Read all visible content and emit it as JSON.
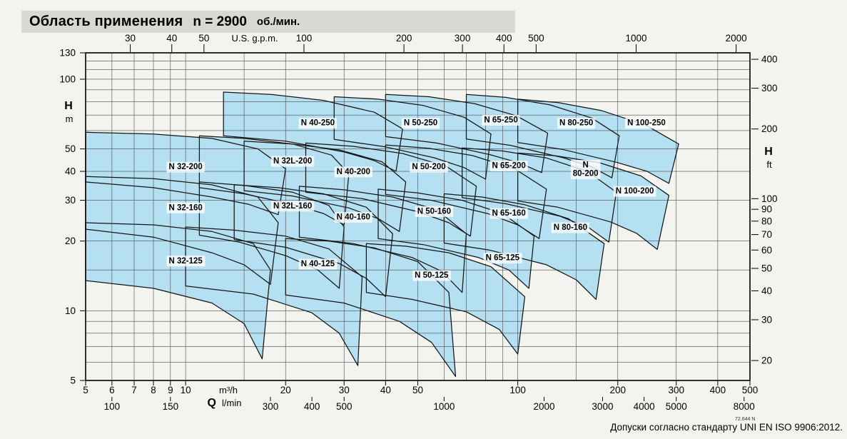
{
  "title_bar": {
    "main": "Область применения",
    "n_label": "n = 2900",
    "n_unit": "об./мин."
  },
  "footer": {
    "tolerance_note": "Допуски согласно стандарту UNI EN ISO 9906:2012.",
    "doc_code": "72.644 N"
  },
  "colors": {
    "region_fill": "#b5e0f1",
    "region_stroke": "#151515",
    "grid_line": "#4a4a4a",
    "plot_border": "#000000",
    "title_bar_bg": "#d8d8d5",
    "page_bg": "#f3f3ef",
    "label_bg": "rgba(255,255,255,0.78)"
  },
  "chart_data": {
    "type": "area",
    "title": "Область применения n = 2900 об./мин.",
    "x_axis": {
      "name": "Q",
      "scale": "log",
      "units": [
        "m³/h",
        "l/min",
        "U.S. g.p.m."
      ],
      "range_m3h": [
        5,
        500
      ],
      "ticks_m3h": [
        5,
        6,
        7,
        8,
        9,
        10,
        20,
        30,
        40,
        50,
        100,
        200,
        300,
        400,
        500
      ],
      "ticks_lmin": [
        100,
        150,
        300,
        400,
        500,
        1000,
        2000,
        3000,
        4000,
        5000,
        8000
      ],
      "ticks_gpm": [
        30,
        40,
        50,
        100,
        200,
        300,
        400,
        500,
        1000,
        2000
      ]
    },
    "y_axis": {
      "name": "H",
      "scale": "log",
      "units": [
        "m",
        "ft"
      ],
      "range_m": [
        5,
        130
      ],
      "ticks_m": [
        5,
        10,
        20,
        30,
        40,
        50,
        100,
        130
      ],
      "ticks_ft": [
        20,
        30,
        40,
        50,
        60,
        70,
        80,
        90,
        100,
        200,
        300,
        400
      ]
    },
    "grid": {
      "x_m3h": [
        5,
        6,
        7,
        8,
        9,
        10,
        15,
        20,
        30,
        40,
        50,
        60,
        70,
        80,
        90,
        100,
        150,
        200,
        300,
        400,
        500
      ],
      "y_m": [
        5,
        6,
        7,
        8,
        9,
        10,
        15,
        20,
        30,
        40,
        50,
        60,
        70,
        80,
        90,
        100,
        110,
        120,
        130
      ]
    },
    "regions": [
      {
        "name": "N 32-125",
        "label_lines": [
          "N 32-125"
        ],
        "label_pos": [
          10,
          16.5
        ],
        "points": [
          [
            5,
            24
          ],
          [
            8,
            23.5
          ],
          [
            12,
            22
          ],
          [
            16,
            19.5
          ],
          [
            18,
            15
          ],
          [
            17,
            6.2
          ],
          [
            15,
            8.8
          ],
          [
            12,
            10.8
          ],
          [
            8,
            12.5
          ],
          [
            5,
            13.5
          ]
        ]
      },
      {
        "name": "N 32-160",
        "label_lines": [
          "N 32-160"
        ],
        "label_pos": [
          10,
          28
        ],
        "points": [
          [
            5,
            38
          ],
          [
            8,
            37.2
          ],
          [
            12,
            35
          ],
          [
            16.5,
            31
          ],
          [
            19,
            24
          ],
          [
            18,
            13
          ],
          [
            15,
            15.8
          ],
          [
            12,
            17.8
          ],
          [
            8,
            20.8
          ],
          [
            5,
            22.5
          ]
        ]
      },
      {
        "name": "N 32-200",
        "label_lines": [
          "N 32-200"
        ],
        "label_pos": [
          10,
          42
        ],
        "points": [
          [
            5,
            59
          ],
          [
            8,
            58
          ],
          [
            12,
            55.5
          ],
          [
            16.5,
            50
          ],
          [
            20,
            41
          ],
          [
            19,
            26
          ],
          [
            15.5,
            28.8
          ],
          [
            12,
            31
          ],
          [
            8,
            34
          ],
          [
            5,
            36
          ]
        ]
      },
      {
        "name": "N 32L-160",
        "label_lines": [
          "N 32L-160"
        ],
        "label_pos": [
          21,
          28.5
        ],
        "points": [
          [
            11,
            36
          ],
          [
            15,
            34.8
          ],
          [
            21,
            32.5
          ],
          [
            27,
            28.5
          ],
          [
            30,
            23
          ],
          [
            29,
            12.5
          ],
          [
            25,
            15
          ],
          [
            20,
            17.3
          ],
          [
            14.5,
            19.8
          ],
          [
            11,
            21.2
          ]
        ]
      },
      {
        "name": "N 32L-200",
        "label_lines": [
          "N 32L-200"
        ],
        "label_pos": [
          21,
          44.5
        ],
        "points": [
          [
            11,
            57
          ],
          [
            15,
            55.5
          ],
          [
            21,
            52.5
          ],
          [
            27.5,
            47
          ],
          [
            31,
            39
          ],
          [
            30,
            23.5
          ],
          [
            26,
            26.3
          ],
          [
            21,
            28.8
          ],
          [
            15,
            32
          ],
          [
            11,
            34
          ]
        ]
      },
      {
        "name": "N 40-125",
        "label_lines": [
          "N 40-125"
        ],
        "label_pos": [
          25,
          16
        ],
        "points": [
          [
            10,
            23
          ],
          [
            14,
            22.3
          ],
          [
            20,
            21
          ],
          [
            27,
            18.5
          ],
          [
            34,
            14
          ],
          [
            33,
            5.8
          ],
          [
            29,
            8
          ],
          [
            24,
            9.8
          ],
          [
            16,
            11.8
          ],
          [
            10,
            12.8
          ]
        ]
      },
      {
        "name": "N 40-160",
        "label_lines": [
          "N 40-160"
        ],
        "label_pos": [
          32,
          25.5
        ],
        "points": [
          [
            14,
            35
          ],
          [
            19,
            34
          ],
          [
            26,
            32
          ],
          [
            35,
            28
          ],
          [
            42,
            21.5
          ],
          [
            40,
            11.5
          ],
          [
            35,
            13.8
          ],
          [
            29,
            16
          ],
          [
            20,
            18.8
          ],
          [
            14,
            20.3
          ]
        ]
      },
      {
        "name": "N 40-200",
        "label_lines": [
          "N 40-200"
        ],
        "label_pos": [
          32,
          40
        ],
        "points": [
          [
            15,
            54
          ],
          [
            21,
            52.5
          ],
          [
            29,
            49.5
          ],
          [
            39,
            44
          ],
          [
            46,
            36
          ],
          [
            44,
            22
          ],
          [
            38,
            25
          ],
          [
            31,
            27.8
          ],
          [
            21,
            31.3
          ],
          [
            15,
            33
          ]
        ]
      },
      {
        "name": "N 40-250",
        "label_lines": [
          "N 40-250"
        ],
        "label_pos": [
          25,
          65
        ],
        "points": [
          [
            13,
            88
          ],
          [
            18,
            86
          ],
          [
            26,
            81
          ],
          [
            37,
            72
          ],
          [
            45,
            61
          ],
          [
            43,
            40
          ],
          [
            37,
            44.5
          ],
          [
            30,
            48.5
          ],
          [
            20,
            54
          ],
          [
            13,
            57
          ]
        ]
      },
      {
        "name": "N 50-125",
        "label_lines": [
          "N 50-125"
        ],
        "label_pos": [
          55,
          14.3
        ],
        "points": [
          [
            20,
            20.5
          ],
          [
            27,
            20
          ],
          [
            37,
            18.7
          ],
          [
            50,
            16.3
          ],
          [
            62,
            12
          ],
          [
            65,
            5.2
          ],
          [
            55,
            7.3
          ],
          [
            44,
            9
          ],
          [
            30,
            10.8
          ],
          [
            20,
            11.7
          ]
        ]
      },
      {
        "name": "N 50-160",
        "label_lines": [
          "N 50-160"
        ],
        "label_pos": [
          56,
          27
        ],
        "points": [
          [
            22,
            34.5
          ],
          [
            30,
            33.3
          ],
          [
            42,
            31
          ],
          [
            57,
            27.3
          ],
          [
            70,
            21.5
          ],
          [
            68,
            12
          ],
          [
            59,
            14.8
          ],
          [
            48,
            17
          ],
          [
            32,
            19.5
          ],
          [
            22,
            20.8
          ]
        ]
      },
      {
        "name": "N 50-200",
        "label_lines": [
          "N 50-200"
        ],
        "label_pos": [
          54,
          42
        ],
        "points": [
          [
            23,
            53
          ],
          [
            32,
            51.3
          ],
          [
            45,
            47.8
          ],
          [
            61,
            42
          ],
          [
            75,
            34.5
          ],
          [
            72,
            21
          ],
          [
            62,
            24
          ],
          [
            50,
            26.8
          ],
          [
            34,
            30.5
          ],
          [
            23,
            32.5
          ]
        ]
      },
      {
        "name": "N 50-250",
        "label_lines": [
          "N 50-250"
        ],
        "label_pos": [
          51,
          65
        ],
        "points": [
          [
            28,
            84
          ],
          [
            38,
            82
          ],
          [
            52,
            77
          ],
          [
            69,
            68.5
          ],
          [
            83,
            58
          ],
          [
            80,
            37
          ],
          [
            69,
            41.5
          ],
          [
            56,
            45.8
          ],
          [
            40,
            51
          ],
          [
            28,
            55
          ]
        ]
      },
      {
        "name": "N 65-125",
        "label_lines": [
          "N 65-125"
        ],
        "label_pos": [
          90,
          17
        ],
        "points": [
          [
            35,
            19.5
          ],
          [
            46,
            19
          ],
          [
            62,
            17.8
          ],
          [
            83,
            15.5
          ],
          [
            105,
            11.5
          ],
          [
            100,
            6.5
          ],
          [
            88,
            8.3
          ],
          [
            70,
            9.9
          ],
          [
            48,
            11.2
          ],
          [
            35,
            12
          ]
        ]
      },
      {
        "name": "N 65-160",
        "label_lines": [
          "N 65-160"
        ],
        "label_pos": [
          94,
          26.5
        ],
        "points": [
          [
            38,
            33.5
          ],
          [
            50,
            32.3
          ],
          [
            68,
            30
          ],
          [
            90,
            26.3
          ],
          [
            112,
            21
          ],
          [
            108,
            12.5
          ],
          [
            94,
            15
          ],
          [
            76,
            17
          ],
          [
            52,
            19.3
          ],
          [
            38,
            20.5
          ]
        ]
      },
      {
        "name": "N 65-200",
        "label_lines": [
          "N 65-200"
        ],
        "label_pos": [
          94,
          42.5
        ],
        "points": [
          [
            40,
            52
          ],
          [
            54,
            50.3
          ],
          [
            73,
            46.8
          ],
          [
            98,
            41
          ],
          [
            122,
            33.5
          ],
          [
            116,
            20.5
          ],
          [
            100,
            23.5
          ],
          [
            81,
            26.3
          ],
          [
            55,
            30
          ],
          [
            40,
            31.8
          ]
        ]
      },
      {
        "name": "N 65-250",
        "label_lines": [
          "N 65-250"
        ],
        "label_pos": [
          89,
          67
        ],
        "points": [
          [
            40,
            86
          ],
          [
            54,
            84
          ],
          [
            74,
            78.5
          ],
          [
            99,
            69.5
          ],
          [
            123,
            58.5
          ],
          [
            118,
            39.5
          ],
          [
            101,
            43.5
          ],
          [
            82,
            47.3
          ],
          [
            57,
            53
          ],
          [
            40,
            56.5
          ]
        ]
      },
      {
        "name": "N 80-160",
        "label_lines": [
          "N 80-160"
        ],
        "label_pos": [
          144,
          23
        ],
        "points": [
          [
            60,
            32
          ],
          [
            78,
            31
          ],
          [
            105,
            28.7
          ],
          [
            142,
            25
          ],
          [
            182,
            19.5
          ],
          [
            172,
            11.2
          ],
          [
            150,
            13.6
          ],
          [
            122,
            15.8
          ],
          [
            82,
            18.3
          ],
          [
            60,
            19.6
          ]
        ]
      },
      {
        "name": "N 80-200",
        "label_lines": [
          "N",
          "80-200"
        ],
        "label_pos": [
          160,
          41
        ],
        "points": [
          [
            68,
            50.5
          ],
          [
            90,
            49
          ],
          [
            122,
            45.7
          ],
          [
            162,
            40
          ],
          [
            198,
            32.5
          ],
          [
            188,
            19.8
          ],
          [
            164,
            22.8
          ],
          [
            134,
            25.6
          ],
          [
            92,
            29
          ],
          [
            68,
            30.8
          ]
        ]
      },
      {
        "name": "N 80-250",
        "label_lines": [
          "N 80-250"
        ],
        "label_pos": [
          150,
          65
        ],
        "points": [
          [
            70,
            86
          ],
          [
            92,
            83.5
          ],
          [
            125,
            77.5
          ],
          [
            167,
            68
          ],
          [
            202,
            57
          ],
          [
            192,
            37.5
          ],
          [
            166,
            42
          ],
          [
            137,
            45.8
          ],
          [
            95,
            51.8
          ],
          [
            70,
            55.2
          ]
        ]
      },
      {
        "name": "N 100-200",
        "label_lines": [
          "N 100-200"
        ],
        "label_pos": [
          225,
          33
        ],
        "points": [
          [
            100,
            48
          ],
          [
            130,
            46.7
          ],
          [
            176,
            43.6
          ],
          [
            235,
            38.2
          ],
          [
            285,
            31.5
          ],
          [
            263,
            18.4
          ],
          [
            228,
            21.6
          ],
          [
            190,
            24.2
          ],
          [
            132,
            28
          ],
          [
            100,
            29.8
          ]
        ]
      },
      {
        "name": "N 100-250",
        "label_lines": [
          "N 100-250"
        ],
        "label_pos": [
          244,
          65
        ],
        "points": [
          [
            100,
            82
          ],
          [
            132,
            79.3
          ],
          [
            178,
            73.3
          ],
          [
            242,
            63.5
          ],
          [
            305,
            52.5
          ],
          [
            285,
            35.5
          ],
          [
            245,
            40
          ],
          [
            198,
            43.8
          ],
          [
            136,
            49.8
          ],
          [
            100,
            53.3
          ]
        ]
      }
    ]
  }
}
